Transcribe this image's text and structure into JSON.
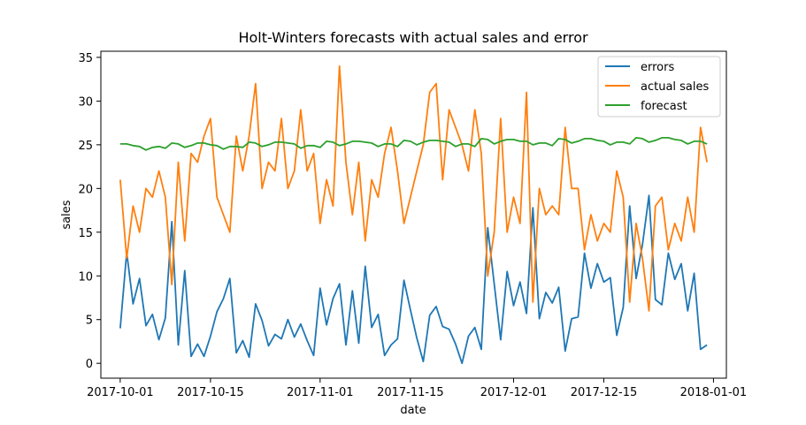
{
  "chart_data": {
    "type": "line",
    "title": "Holt-Winters forecasts with actual sales and error",
    "xlabel": "date",
    "ylabel": "sales",
    "x_range": [
      "2017-09-28",
      "2018-01-03"
    ],
    "ylim": [
      -1.7,
      35.7
    ],
    "x_ticks": [
      "2017-10-01",
      "2017-10-15",
      "2017-11-01",
      "2017-11-15",
      "2017-12-01",
      "2017-12-15",
      "2018-01-01"
    ],
    "y_ticks": [
      0,
      5,
      10,
      15,
      20,
      25,
      30,
      35
    ],
    "legend_position": "top-right",
    "x_start": "2017-10-01",
    "x_step_days": 1,
    "series": [
      {
        "name": "errors",
        "color": "#1f77b4",
        "values": [
          4.0,
          12.7,
          6.8,
          9.7,
          4.3,
          5.6,
          2.7,
          5.2,
          16.2,
          2.1,
          10.6,
          0.8,
          2.2,
          0.8,
          3.1,
          5.9,
          7.4,
          9.7,
          1.2,
          2.6,
          0.7,
          6.8,
          4.9,
          2.0,
          3.3,
          2.8,
          5.0,
          3.0,
          4.5,
          2.6,
          0.9,
          8.6,
          4.4,
          7.4,
          9.1,
          2.1,
          8.3,
          2.3,
          11.1,
          4.1,
          5.6,
          0.9,
          2.1,
          2.8,
          9.5,
          6.1,
          2.9,
          0.2,
          5.5,
          6.5,
          4.2,
          3.9,
          2.2,
          0.0,
          3.1,
          4.1,
          1.6,
          15.5,
          9.1,
          2.7,
          10.5,
          6.6,
          9.3,
          5.7,
          17.8,
          5.1,
          8.1,
          6.9,
          8.7,
          1.4,
          5.1,
          5.3,
          12.6,
          8.6,
          11.4,
          9.3,
          9.8,
          3.2,
          6.4,
          18.0,
          9.7,
          13.6,
          19.2,
          7.3,
          6.7,
          12.6,
          9.6,
          11.4,
          6.0,
          10.3,
          1.6,
          2.1
        ]
      },
      {
        "name": "actual sales",
        "color": "#ff7f0e",
        "values": [
          21,
          12,
          18,
          15,
          20,
          19,
          22,
          19,
          9,
          23,
          14,
          24,
          23,
          26,
          28,
          19,
          17,
          15,
          26,
          22,
          26,
          32,
          20,
          23,
          22,
          28,
          20,
          22,
          29,
          22,
          24,
          16,
          21,
          18,
          34,
          23,
          17,
          23,
          14,
          21,
          19,
          24,
          27,
          22,
          16,
          19,
          22,
          25,
          31,
          32,
          21,
          29,
          27,
          25,
          22,
          29,
          24,
          10,
          15,
          28,
          15,
          19,
          16,
          31,
          7,
          20,
          17,
          18,
          17,
          27,
          20,
          20,
          13,
          17,
          14,
          16,
          15,
          22,
          19,
          7,
          16,
          12,
          6,
          18,
          19,
          13,
          16,
          14,
          19,
          15,
          27,
          23
        ]
      },
      {
        "name": "forecast",
        "color": "#2ca02c",
        "values": [
          25.1,
          25.1,
          24.9,
          24.8,
          24.4,
          24.7,
          24.8,
          24.6,
          25.2,
          25.1,
          24.7,
          24.9,
          25.2,
          25.2,
          25.0,
          24.9,
          24.5,
          24.8,
          24.8,
          24.7,
          25.3,
          25.2,
          24.8,
          25.0,
          25.3,
          25.3,
          25.2,
          25.1,
          24.6,
          24.9,
          24.9,
          24.7,
          25.4,
          25.3,
          24.9,
          25.1,
          25.4,
          25.4,
          25.3,
          25.2,
          24.8,
          25.1,
          25.1,
          24.8,
          25.5,
          25.4,
          25.0,
          25.3,
          25.5,
          25.5,
          25.4,
          25.3,
          24.8,
          25.1,
          25.1,
          24.8,
          25.7,
          25.6,
          25.1,
          25.4,
          25.6,
          25.6,
          25.4,
          25.4,
          25.0,
          25.2,
          25.2,
          24.9,
          25.7,
          25.6,
          25.2,
          25.4,
          25.7,
          25.7,
          25.5,
          25.4,
          25.0,
          25.3,
          25.3,
          25.1,
          25.8,
          25.7,
          25.3,
          25.5,
          25.8,
          25.8,
          25.6,
          25.5,
          25.1,
          25.4,
          25.4,
          25.1
        ]
      }
    ]
  }
}
